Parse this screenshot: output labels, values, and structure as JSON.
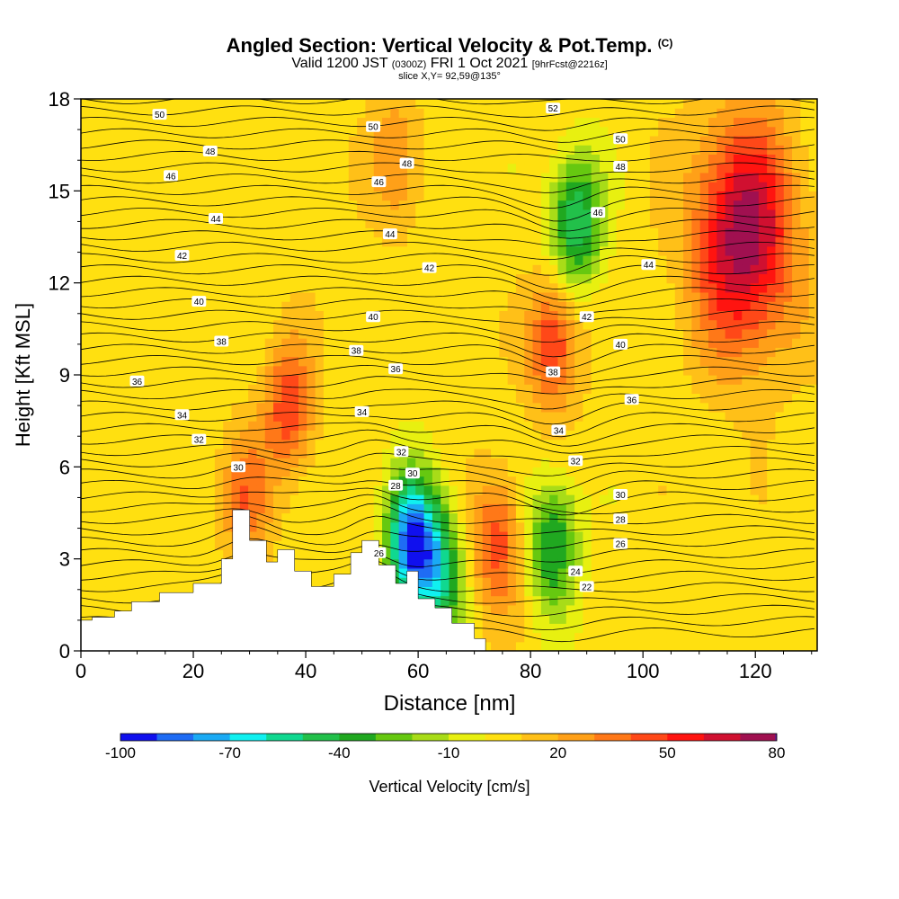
{
  "chart_data": {
    "type": "heatmap",
    "title": "Angled Section: Vertical Velocity & Pot.Temp.",
    "title_tag": "(C)",
    "subtitle_prefix": "Valid 1200 JST",
    "subtitle_zulu": "(0300Z)",
    "subtitle_date": "FRI 1 Oct 2021",
    "subtitle_fcst": "[9hrFcst@2216z]",
    "slice_label": "slice X,Y= 92,59@135°",
    "xlabel": "Distance [nm]",
    "ylabel": "Height [Kft MSL]",
    "xlim": [
      0,
      131
    ],
    "ylim": [
      0,
      18
    ],
    "x_ticks": [
      "0",
      "20",
      "40",
      "60",
      "80",
      "100",
      "120"
    ],
    "y_ticks": [
      "0",
      "3",
      "6",
      "9",
      "12",
      "15",
      "18"
    ],
    "colorbar": {
      "label": "Vertical Velocity [cm/s]",
      "ticks": [
        "-100",
        "-70",
        "-40",
        "-10",
        "20",
        "50",
        "80"
      ],
      "colors": [
        "#1010ee",
        "#1f6cf4",
        "#1aaaf4",
        "#10f0f0",
        "#10d890",
        "#22c04a",
        "#20a820",
        "#66c810",
        "#a8dc18",
        "#e8f010",
        "#ffe010",
        "#ffc018",
        "#ffa018",
        "#ff7818",
        "#ff4818",
        "#ff1410",
        "#d01030",
        "#a01050",
        "#6a1888"
      ]
    },
    "background_value_cm_s": 5,
    "features": [
      {
        "type": "updraft",
        "x": 118,
        "height": 13.5,
        "peak_cm_s": 75
      },
      {
        "type": "updraft",
        "x": 84,
        "height": 10,
        "peak_cm_s": 50
      },
      {
        "type": "updraft",
        "x": 74,
        "height": 3.5,
        "peak_cm_s": 45
      },
      {
        "type": "updraft",
        "x": 37,
        "height": 8,
        "peak_cm_s": 45
      },
      {
        "type": "updraft",
        "x": 56,
        "height": 16,
        "peak_cm_s": 30
      },
      {
        "type": "updraft",
        "x": 29,
        "height": 5,
        "peak_cm_s": 35
      },
      {
        "type": "downdraft",
        "x": 88,
        "height": 14,
        "peak_cm_s": -55
      },
      {
        "type": "downdraft",
        "x": 59,
        "height": 3.5,
        "peak_cm_s": -90
      },
      {
        "type": "downdraft",
        "x": 84,
        "height": 3.5,
        "peak_cm_s": -45
      },
      {
        "type": "downdraft",
        "x": 64,
        "height": 2.5,
        "peak_cm_s": -45
      }
    ],
    "terrain": [
      [
        0,
        1.0
      ],
      [
        2,
        1.0
      ],
      [
        2,
        1.1
      ],
      [
        6,
        1.1
      ],
      [
        6,
        1.3
      ],
      [
        9,
        1.3
      ],
      [
        9,
        1.6
      ],
      [
        14,
        1.6
      ],
      [
        14,
        1.9
      ],
      [
        20,
        1.9
      ],
      [
        20,
        2.2
      ],
      [
        25,
        2.2
      ],
      [
        25,
        3.0
      ],
      [
        27,
        3.0
      ],
      [
        27,
        4.6
      ],
      [
        30,
        4.6
      ],
      [
        30,
        3.6
      ],
      [
        33,
        3.6
      ],
      [
        33,
        2.9
      ],
      [
        35,
        2.9
      ],
      [
        35,
        3.3
      ],
      [
        38,
        3.3
      ],
      [
        38,
        2.6
      ],
      [
        41,
        2.6
      ],
      [
        41,
        2.1
      ],
      [
        45,
        2.1
      ],
      [
        45,
        2.5
      ],
      [
        48,
        2.5
      ],
      [
        48,
        3.2
      ],
      [
        50,
        3.2
      ],
      [
        50,
        3.6
      ],
      [
        53,
        3.6
      ],
      [
        53,
        2.8
      ],
      [
        56,
        2.8
      ],
      [
        56,
        2.2
      ],
      [
        58,
        2.2
      ],
      [
        58,
        2.6
      ],
      [
        60,
        2.6
      ],
      [
        60,
        1.7
      ],
      [
        63,
        1.7
      ],
      [
        63,
        1.4
      ],
      [
        66,
        1.4
      ],
      [
        66,
        0.9
      ],
      [
        70,
        0.9
      ],
      [
        70,
        0.4
      ],
      [
        72,
        0.4
      ],
      [
        72,
        0.0
      ]
    ],
    "isentropes": [
      {
        "label": "22",
        "y": 2.1,
        "lx": 90
      },
      {
        "label": "24",
        "y": 2.6,
        "lx": 88
      },
      {
        "label": "26",
        "y": 3.5,
        "lx": 96
      },
      {
        "label": "26",
        "y": 3.2,
        "lx": 53
      },
      {
        "label": "28",
        "y": 4.3,
        "lx": 96
      },
      {
        "label": "28",
        "y": 5.4,
        "lx": 56
      },
      {
        "label": "30",
        "y": 5.1,
        "lx": 96
      },
      {
        "label": "30",
        "y": 5.8,
        "lx": 59
      },
      {
        "label": "30",
        "y": 6.0,
        "lx": 28
      },
      {
        "label": "32",
        "y": 6.2,
        "lx": 88
      },
      {
        "label": "32",
        "y": 6.5,
        "lx": 57
      },
      {
        "label": "32",
        "y": 6.9,
        "lx": 21
      },
      {
        "label": "34",
        "y": 7.2,
        "lx": 85
      },
      {
        "label": "34",
        "y": 7.8,
        "lx": 50
      },
      {
        "label": "34",
        "y": 7.7,
        "lx": 18
      },
      {
        "label": "36",
        "y": 8.2,
        "lx": 98
      },
      {
        "label": "36",
        "y": 9.2,
        "lx": 56
      },
      {
        "label": "36",
        "y": 8.8,
        "lx": 10
      },
      {
        "label": "38",
        "y": 9.1,
        "lx": 84
      },
      {
        "label": "38",
        "y": 9.8,
        "lx": 49
      },
      {
        "label": "38",
        "y": 10.1,
        "lx": 25
      },
      {
        "label": "40",
        "y": 10.0,
        "lx": 96
      },
      {
        "label": "40",
        "y": 10.9,
        "lx": 52
      },
      {
        "label": "40",
        "y": 11.4,
        "lx": 21
      },
      {
        "label": "42",
        "y": 10.9,
        "lx": 90
      },
      {
        "label": "42",
        "y": 12.5,
        "lx": 62
      },
      {
        "label": "42",
        "y": 12.9,
        "lx": 18
      },
      {
        "label": "44",
        "y": 12.6,
        "lx": 101
      },
      {
        "label": "44",
        "y": 13.6,
        "lx": 55
      },
      {
        "label": "44",
        "y": 14.1,
        "lx": 24
      },
      {
        "label": "46",
        "y": 14.3,
        "lx": 92
      },
      {
        "label": "46",
        "y": 15.3,
        "lx": 53
      },
      {
        "label": "46",
        "y": 15.5,
        "lx": 16
      },
      {
        "label": "48",
        "y": 15.8,
        "lx": 96
      },
      {
        "label": "48",
        "y": 15.9,
        "lx": 58
      },
      {
        "label": "48",
        "y": 16.3,
        "lx": 23
      },
      {
        "label": "50",
        "y": 16.7,
        "lx": 96
      },
      {
        "label": "50",
        "y": 17.1,
        "lx": 52
      },
      {
        "label": "50",
        "y": 17.5,
        "lx": 14
      },
      {
        "label": "52",
        "y": 17.7,
        "lx": 84
      }
    ]
  }
}
